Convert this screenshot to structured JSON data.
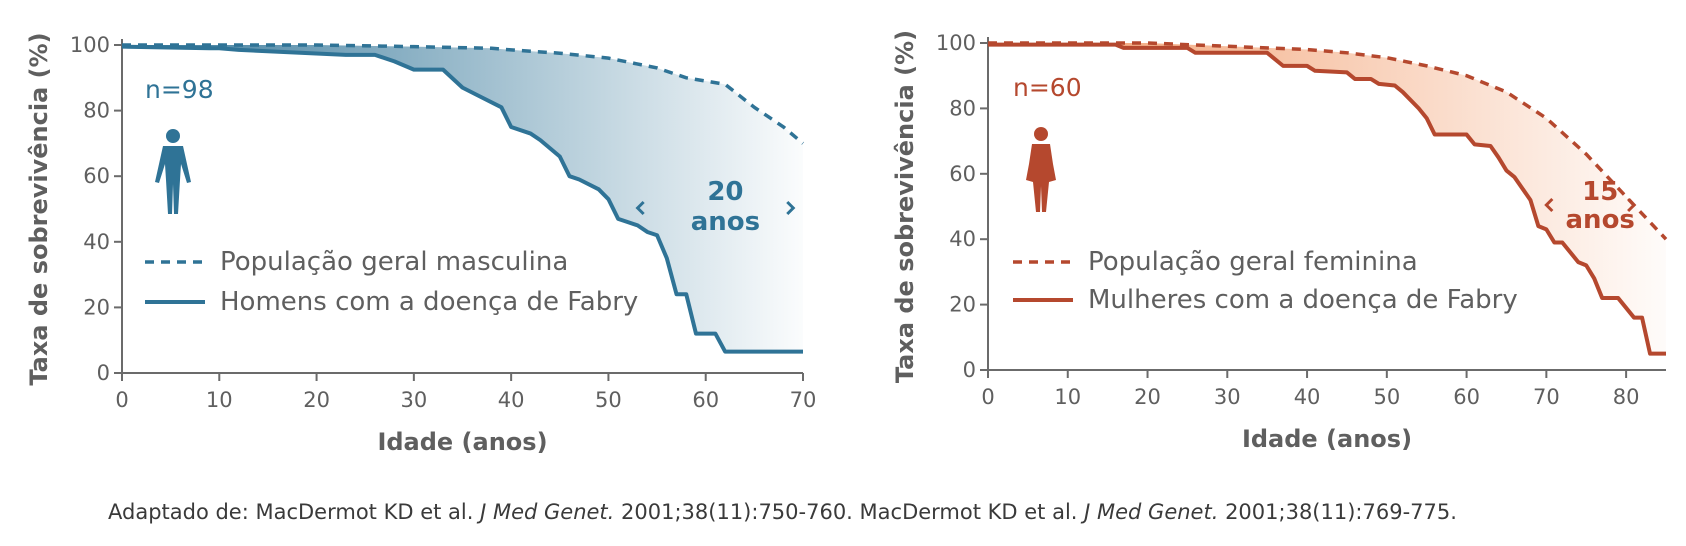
{
  "chart_data": [
    {
      "type": "line",
      "color": "#2f7396",
      "xlabel": "Idade (anos)",
      "ylabel": "Taxa de sobrevivência (%)",
      "xlim": [
        0,
        70
      ],
      "ylim": [
        0,
        100
      ],
      "xticks": [
        "0",
        "10",
        "20",
        "30",
        "40",
        "50",
        "60",
        "70"
      ],
      "yticks": [
        "0",
        "20",
        "40",
        "60",
        "80",
        "100"
      ],
      "n_label": "n=98",
      "icon": "male-figure-icon",
      "gap_value": "20",
      "gap_unit": "anos",
      "gap_range": [
        53,
        69
      ],
      "series": [
        {
          "name": "População geral masculina",
          "style": "dashed",
          "x": [
            0,
            10,
            20,
            30,
            38,
            40,
            45,
            50,
            55,
            58,
            62,
            65,
            68,
            70
          ],
          "y": [
            100,
            100,
            100,
            99.5,
            99,
            98.5,
            97.5,
            96,
            93,
            90,
            88,
            81,
            75,
            70
          ]
        },
        {
          "name": "Homens com a doença de Fabry",
          "style": "solid",
          "x": [
            0,
            9,
            10,
            12,
            23,
            26,
            28,
            30,
            33,
            35,
            37,
            39,
            40,
            42,
            43,
            45,
            46,
            47,
            49,
            50,
            51,
            52,
            53,
            54,
            55,
            56,
            57,
            58,
            59,
            60,
            61,
            62,
            70
          ],
          "y": [
            99.5,
            99,
            99,
            98.5,
            97,
            97,
            95,
            92.5,
            92.5,
            87,
            84,
            81,
            75,
            73,
            71,
            66,
            60,
            59,
            56,
            53,
            47,
            46,
            45,
            43,
            42,
            35,
            24,
            24,
            12,
            12,
            12,
            6.5,
            6.5
          ]
        }
      ]
    },
    {
      "type": "line",
      "color": "#b5482e",
      "xlabel": "Idade (anos)",
      "ylabel": "Taxa de sobrevivência (%)",
      "xlim": [
        0,
        85
      ],
      "ylim": [
        0,
        100
      ],
      "xticks": [
        "0",
        "10",
        "20",
        "30",
        "40",
        "50",
        "60",
        "70",
        "80"
      ],
      "yticks": [
        "0",
        "20",
        "40",
        "60",
        "80",
        "100"
      ],
      "n_label": "n=60",
      "icon": "female-figure-icon",
      "gap_value": "15",
      "gap_unit": "anos",
      "gap_range": [
        70,
        81
      ],
      "series": [
        {
          "name": "População geral feminina",
          "style": "dashed",
          "x": [
            0,
            10,
            20,
            30,
            40,
            45,
            50,
            55,
            60,
            65,
            70,
            75,
            80,
            85
          ],
          "y": [
            100,
            100,
            100,
            99,
            98,
            97,
            95.5,
            93,
            90,
            85,
            77,
            66,
            53,
            40
          ]
        },
        {
          "name": "Mulheres com a doença de Fabry",
          "style": "solid",
          "x": [
            0,
            16,
            17,
            25,
            26,
            35,
            37,
            40,
            41,
            45,
            46,
            48,
            49,
            51,
            52,
            54,
            55,
            56,
            57,
            60,
            61,
            63,
            64,
            65,
            66,
            68,
            69,
            70,
            71,
            72,
            74,
            75,
            76,
            77,
            78,
            79,
            81,
            82,
            83,
            85
          ],
          "y": [
            99.5,
            99.5,
            98.5,
            98.5,
            97,
            97,
            93,
            93,
            91.5,
            91,
            89,
            89,
            87.5,
            87,
            85,
            80,
            77,
            72,
            72,
            72,
            69,
            68.5,
            65,
            61,
            59,
            52,
            44,
            43,
            39,
            39,
            33,
            32,
            28,
            22,
            22,
            22,
            16,
            16,
            5,
            5
          ]
        }
      ]
    }
  ],
  "citation": {
    "prefix": "Adaptado de: MacDermot KD et al. ",
    "journal1": "J Med Genet.",
    "ref1": " 2001;38(11):750-760. MacDermot KD et al. ",
    "journal2": "J Med Genet.",
    "ref2": " 2001;38(11):769-775."
  }
}
